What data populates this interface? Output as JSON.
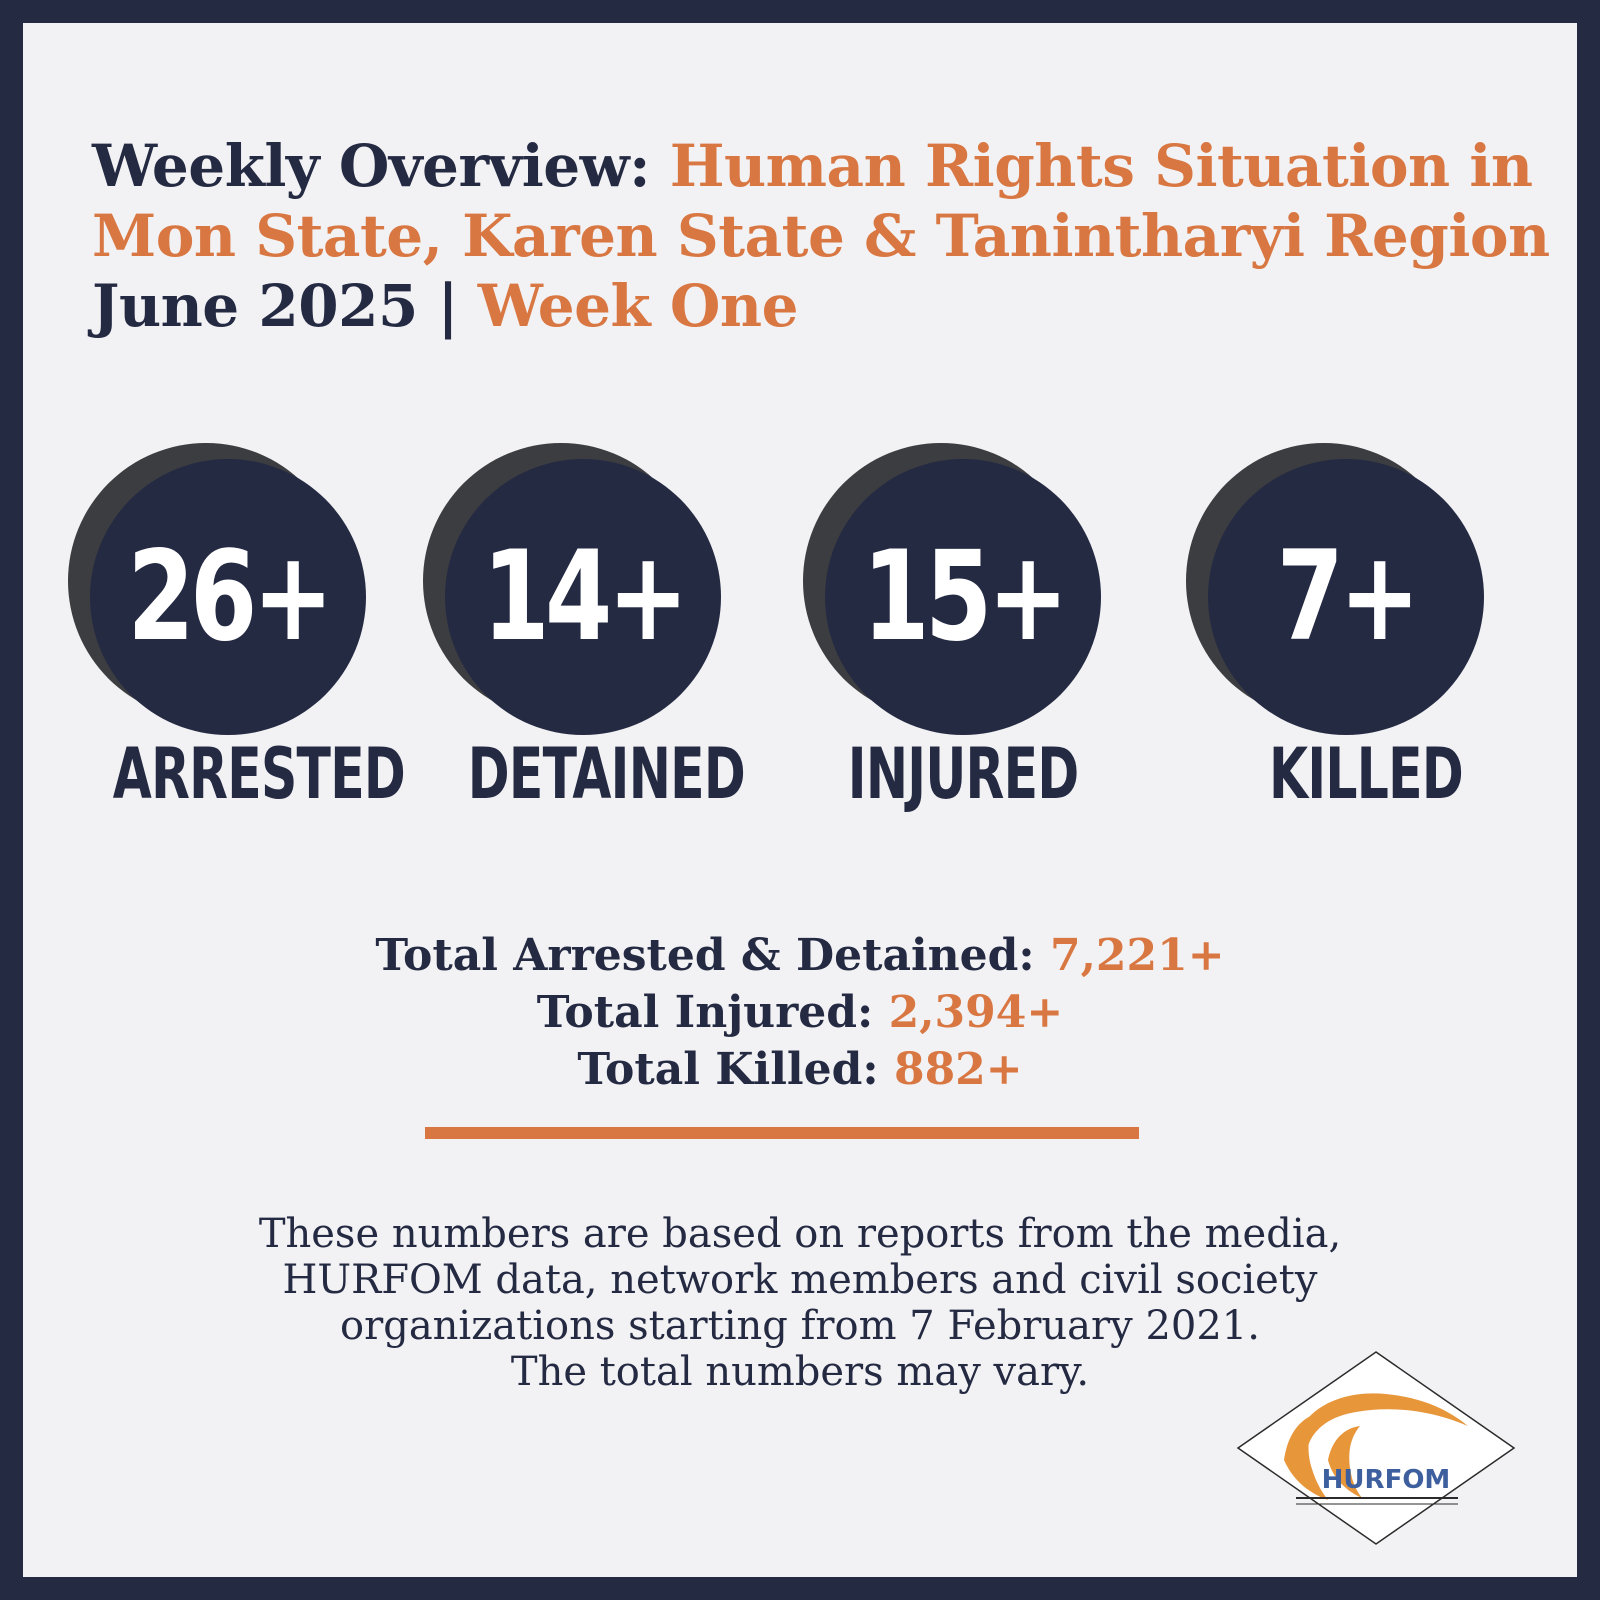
{
  "title": {
    "prefix": "Weekly Overview: ",
    "highlight_line1": "Human Rights Situation in",
    "highlight_line2": "Mon State, Karen State & Tanintharyi Region",
    "month": "June 2025 | ",
    "week": "Week One"
  },
  "stats": [
    {
      "value": "26+",
      "label": "ARRESTED"
    },
    {
      "value": "14+",
      "label": "DETAINED"
    },
    {
      "value": "15+",
      "label": "INJURED"
    },
    {
      "value": "7+",
      "label": "KILLED"
    }
  ],
  "totals": [
    {
      "label": "Total Arrested & Detained: ",
      "value": "7,221+"
    },
    {
      "label": "Total Injured: ",
      "value": "2,394+"
    },
    {
      "label": "Total Killed: ",
      "value": "882+"
    }
  ],
  "note": [
    "These numbers are based on reports from the media,",
    "HURFOM data, network members and civil society",
    "organizations starting from 7 February 2021.",
    "The total numbers may vary."
  ],
  "logo": {
    "text": "HURFOM"
  },
  "colors": {
    "navy": "#252a43",
    "accent": "#d97742",
    "background": "#f2f2f4"
  }
}
